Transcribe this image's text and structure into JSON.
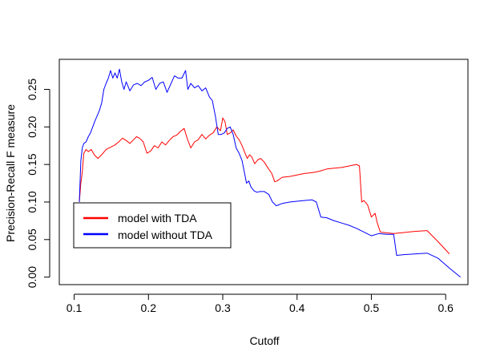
{
  "chart_data": {
    "type": "line",
    "title": "",
    "xlabel": "Cutoff",
    "ylabel": "Precision-Recall F measure",
    "xlim": [
      0.08,
      0.63
    ],
    "ylim": [
      -0.01,
      0.29
    ],
    "x_ticks": [
      0.1,
      0.2,
      0.3,
      0.4,
      0.5,
      0.6
    ],
    "x_tick_labels": [
      "0.1",
      "0.2",
      "0.3",
      "0.4",
      "0.5",
      "0.6"
    ],
    "y_ticks": [
      0.0,
      0.05,
      0.1,
      0.15,
      0.2,
      0.25
    ],
    "y_tick_labels": [
      "0.00",
      "0.05",
      "0.10",
      "0.15",
      "0.20",
      "0.25"
    ],
    "grid": false,
    "legend_position": "bottom-left",
    "series": [
      {
        "name": "model with TDA",
        "color": "#ff0000",
        "x": [
          0.107,
          0.109,
          0.111,
          0.113,
          0.116,
          0.119,
          0.123,
          0.127,
          0.132,
          0.137,
          0.143,
          0.149,
          0.155,
          0.16,
          0.165,
          0.17,
          0.175,
          0.18,
          0.184,
          0.188,
          0.193,
          0.198,
          0.203,
          0.208,
          0.213,
          0.218,
          0.223,
          0.228,
          0.233,
          0.238,
          0.243,
          0.248,
          0.252,
          0.257,
          0.262,
          0.267,
          0.272,
          0.277,
          0.282,
          0.287,
          0.292,
          0.297,
          0.3,
          0.303,
          0.306,
          0.31,
          0.314,
          0.318,
          0.322,
          0.326,
          0.33,
          0.333,
          0.336,
          0.339,
          0.343,
          0.347,
          0.351,
          0.356,
          0.361,
          0.366,
          0.37,
          0.373,
          0.38,
          0.39,
          0.4,
          0.41,
          0.42,
          0.43,
          0.44,
          0.45,
          0.46,
          0.47,
          0.48,
          0.484,
          0.487,
          0.49,
          0.495,
          0.5,
          0.505,
          0.508,
          0.512,
          0.52,
          0.53,
          0.54,
          0.55,
          0.56,
          0.575,
          0.59,
          0.605
        ],
        "y": [
          0.1,
          0.125,
          0.14,
          0.165,
          0.17,
          0.167,
          0.17,
          0.163,
          0.158,
          0.163,
          0.17,
          0.173,
          0.176,
          0.18,
          0.185,
          0.182,
          0.178,
          0.183,
          0.187,
          0.185,
          0.18,
          0.165,
          0.168,
          0.175,
          0.172,
          0.18,
          0.176,
          0.182,
          0.187,
          0.189,
          0.194,
          0.198,
          0.185,
          0.172,
          0.18,
          0.183,
          0.19,
          0.184,
          0.189,
          0.192,
          0.2,
          0.195,
          0.212,
          0.207,
          0.19,
          0.192,
          0.196,
          0.188,
          0.183,
          0.175,
          0.165,
          0.158,
          0.163,
          0.16,
          0.151,
          0.156,
          0.158,
          0.153,
          0.145,
          0.138,
          0.127,
          0.128,
          0.133,
          0.134,
          0.136,
          0.138,
          0.139,
          0.141,
          0.144,
          0.145,
          0.146,
          0.148,
          0.15,
          0.148,
          0.1,
          0.102,
          0.096,
          0.08,
          0.085,
          0.072,
          0.06,
          0.059,
          0.058,
          0.059,
          0.06,
          0.061,
          0.062,
          0.047,
          0.031
        ]
      },
      {
        "name": "model without TDA",
        "color": "#0000ff",
        "x": [
          0.107,
          0.109,
          0.111,
          0.113,
          0.116,
          0.119,
          0.122,
          0.125,
          0.128,
          0.131,
          0.134,
          0.137,
          0.14,
          0.143,
          0.146,
          0.149,
          0.152,
          0.155,
          0.158,
          0.161,
          0.164,
          0.167,
          0.17,
          0.175,
          0.18,
          0.185,
          0.19,
          0.195,
          0.2,
          0.205,
          0.21,
          0.215,
          0.22,
          0.225,
          0.23,
          0.235,
          0.24,
          0.245,
          0.25,
          0.253,
          0.257,
          0.262,
          0.267,
          0.272,
          0.277,
          0.282,
          0.286,
          0.29,
          0.294,
          0.298,
          0.302,
          0.306,
          0.31,
          0.314,
          0.318,
          0.322,
          0.326,
          0.329,
          0.332,
          0.335,
          0.338,
          0.342,
          0.346,
          0.35,
          0.356,
          0.362,
          0.367,
          0.372,
          0.38,
          0.39,
          0.4,
          0.41,
          0.42,
          0.426,
          0.432,
          0.44,
          0.45,
          0.46,
          0.47,
          0.48,
          0.49,
          0.5,
          0.51,
          0.52,
          0.53,
          0.534,
          0.545,
          0.56,
          0.575,
          0.59,
          0.605,
          0.62
        ],
        "y": [
          0.1,
          0.155,
          0.172,
          0.178,
          0.18,
          0.187,
          0.192,
          0.2,
          0.208,
          0.215,
          0.222,
          0.232,
          0.25,
          0.258,
          0.265,
          0.275,
          0.265,
          0.272,
          0.265,
          0.277,
          0.26,
          0.25,
          0.26,
          0.248,
          0.256,
          0.258,
          0.255,
          0.26,
          0.262,
          0.266,
          0.25,
          0.258,
          0.26,
          0.246,
          0.257,
          0.268,
          0.265,
          0.265,
          0.275,
          0.25,
          0.258,
          0.252,
          0.255,
          0.248,
          0.252,
          0.24,
          0.235,
          0.215,
          0.19,
          0.19,
          0.192,
          0.198,
          0.2,
          0.19,
          0.172,
          0.165,
          0.155,
          0.14,
          0.125,
          0.128,
          0.12,
          0.115,
          0.113,
          0.114,
          0.114,
          0.11,
          0.1,
          0.095,
          0.098,
          0.1,
          0.101,
          0.102,
          0.103,
          0.1,
          0.08,
          0.079,
          0.075,
          0.072,
          0.069,
          0.065,
          0.06,
          0.055,
          0.058,
          0.057,
          0.057,
          0.029,
          0.03,
          0.031,
          0.032,
          0.025,
          0.012,
          0.0
        ]
      }
    ]
  }
}
